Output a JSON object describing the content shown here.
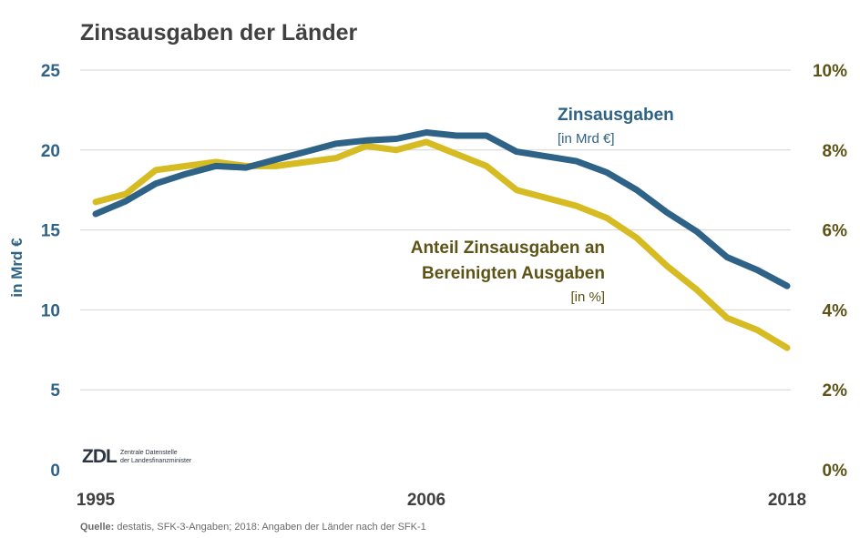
{
  "chart_data": {
    "type": "line",
    "title": "Zinsausgaben der Länder",
    "ylabel_left": "in Mrd €",
    "ylim_left": [
      0,
      25
    ],
    "yticks_left": [
      "0",
      "5",
      "10",
      "15",
      "20",
      "25"
    ],
    "ylim_right": [
      0,
      10
    ],
    "yticks_right": [
      "0%",
      "2%",
      "4%",
      "6%",
      "8%",
      "10%"
    ],
    "xlim": [
      1995,
      2018
    ],
    "xtick_labels": [
      "1995",
      "2006",
      "2018"
    ],
    "x": [
      1995,
      1996,
      1997,
      1998,
      1999,
      2000,
      2001,
      2002,
      2003,
      2004,
      2005,
      2006,
      2007,
      2008,
      2009,
      2010,
      2011,
      2012,
      2013,
      2014,
      2015,
      2016,
      2017,
      2018
    ],
    "grid": true,
    "series": [
      {
        "name": "Zinsausgaben",
        "unit": "[in Mrd €]",
        "axis": "left",
        "color": "#2e6286",
        "values": [
          16.0,
          16.8,
          17.9,
          18.5,
          19.0,
          18.9,
          19.4,
          19.9,
          20.4,
          20.6,
          20.7,
          21.1,
          20.9,
          20.9,
          19.9,
          19.6,
          19.3,
          18.6,
          17.5,
          16.1,
          14.9,
          13.3,
          12.5,
          11.5
        ]
      },
      {
        "name": "Anteil Zinsausgaben an Bereinigten Ausgaben",
        "name_lines": [
          "Anteil Zinsausgaben an",
          "Bereinigten Ausgaben"
        ],
        "unit": "[in %]",
        "axis": "right",
        "color": "#d7bb22",
        "values": [
          6.7,
          6.9,
          7.5,
          7.6,
          7.7,
          7.6,
          7.6,
          7.7,
          7.8,
          8.1,
          8.0,
          8.2,
          7.9,
          7.6,
          7.0,
          6.8,
          6.6,
          6.3,
          5.8,
          5.1,
          4.5,
          3.8,
          3.5,
          3.05
        ]
      }
    ]
  },
  "source": {
    "label": "Quelle:",
    "text": " destatis, SFK-3-Angaben; 2018: Angaben der Länder nach der SFK-1"
  },
  "logo": {
    "mark": "ZDL",
    "line1": "Zentrale Datenstelle",
    "line2": "der Landesfinanzminister"
  }
}
